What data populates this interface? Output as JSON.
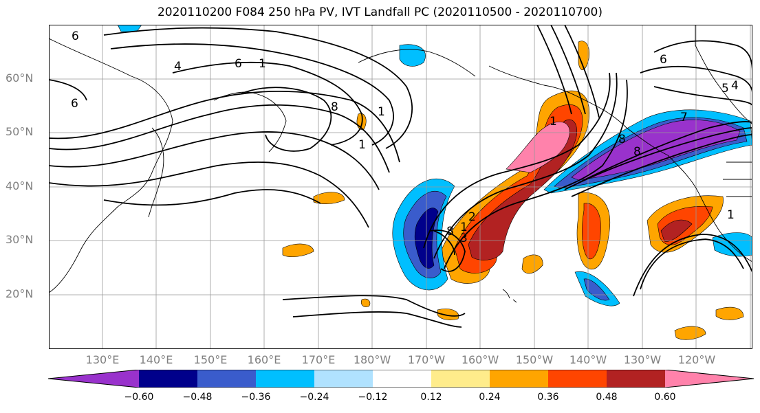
{
  "title": "2020110200 F084 250 hPa PV, IVT Landfall PC (2020110500 - 2020110700)",
  "latitude_labels": [
    "60°N",
    "50°N",
    "40°N",
    "30°N",
    "20°N"
  ],
  "longitude_labels": [
    "130°E",
    "140°E",
    "150°E",
    "160°E",
    "170°E",
    "180°W",
    "170°W",
    "160°W",
    "150°W",
    "140°W",
    "130°W",
    "120°W"
  ],
  "contour_labels": [
    "6",
    "4",
    "6",
    "1",
    "8",
    "6",
    "1",
    "1",
    "8",
    "1",
    "2",
    "3",
    "1",
    "8",
    "6",
    "5",
    "4",
    "7",
    "8",
    "1"
  ],
  "colorbar": {
    "levels": [
      "−0.60",
      "−0.48",
      "−0.36",
      "−0.24",
      "−0.12",
      "0.12",
      "0.24",
      "0.36",
      "0.48",
      "0.60"
    ],
    "colors": [
      "#9932cc",
      "#00008b",
      "#3a5ccc",
      "#00bfff",
      "#b0e2ff",
      "#ffffff",
      "#ffec8b",
      "#ffa500",
      "#ff4500",
      "#b22222",
      "#ff82ab"
    ]
  }
}
